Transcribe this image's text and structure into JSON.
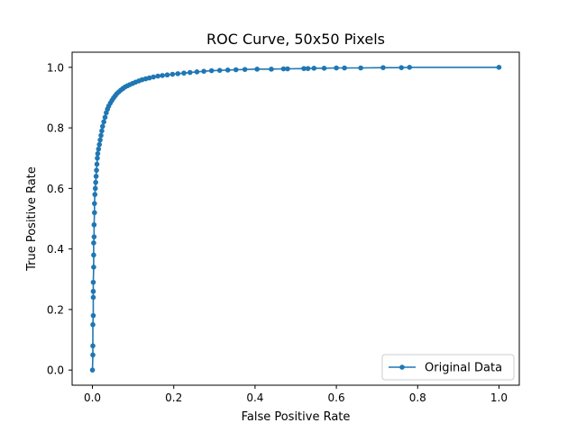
{
  "chart_data": {
    "type": "line",
    "title": "ROC Curve, 50x50 Pixels",
    "xlabel": "False Positive Rate",
    "ylabel": "True Positive Rate",
    "xlim": [
      -0.05,
      1.05
    ],
    "ylim": [
      -0.05,
      1.05
    ],
    "xticks": [
      0.0,
      0.2,
      0.4,
      0.6,
      0.8,
      1.0
    ],
    "yticks": [
      0.0,
      0.2,
      0.4,
      0.6,
      0.8,
      1.0
    ],
    "xtick_labels": [
      "0.0",
      "0.2",
      "0.4",
      "0.6",
      "0.8",
      "1.0"
    ],
    "ytick_labels": [
      "0.0",
      "0.2",
      "0.4",
      "0.6",
      "0.8",
      "1.0"
    ],
    "grid": false,
    "legend_position": "lower right",
    "series": [
      {
        "name": "Original Data",
        "color": "#1f77b4",
        "marker": "circle",
        "x": [
          0.0,
          0.001,
          0.001,
          0.001,
          0.002,
          0.002,
          0.002,
          0.002,
          0.003,
          0.003,
          0.003,
          0.004,
          0.004,
          0.005,
          0.005,
          0.006,
          0.007,
          0.008,
          0.009,
          0.01,
          0.011,
          0.012,
          0.013,
          0.015,
          0.017,
          0.019,
          0.021,
          0.023,
          0.025,
          0.028,
          0.031,
          0.034,
          0.037,
          0.04,
          0.044,
          0.048,
          0.052,
          0.056,
          0.06,
          0.065,
          0.07,
          0.075,
          0.08,
          0.086,
          0.092,
          0.099,
          0.106,
          0.114,
          0.122,
          0.131,
          0.14,
          0.15,
          0.161,
          0.172,
          0.184,
          0.197,
          0.21,
          0.225,
          0.24,
          0.257,
          0.274,
          0.293,
          0.313,
          0.333,
          0.353,
          0.375,
          0.405,
          0.44,
          0.47,
          0.48,
          0.52,
          0.53,
          0.545,
          0.57,
          0.6,
          0.62,
          0.66,
          0.715,
          0.76,
          0.78,
          1.0
        ],
        "y": [
          0.0,
          0.05,
          0.08,
          0.15,
          0.18,
          0.24,
          0.26,
          0.29,
          0.34,
          0.38,
          0.42,
          0.44,
          0.48,
          0.52,
          0.55,
          0.58,
          0.6,
          0.62,
          0.64,
          0.66,
          0.68,
          0.7,
          0.715,
          0.73,
          0.745,
          0.76,
          0.775,
          0.79,
          0.805,
          0.82,
          0.835,
          0.85,
          0.862,
          0.872,
          0.882,
          0.891,
          0.899,
          0.906,
          0.913,
          0.919,
          0.925,
          0.93,
          0.935,
          0.939,
          0.943,
          0.947,
          0.951,
          0.955,
          0.959,
          0.962,
          0.965,
          0.968,
          0.971,
          0.973,
          0.975,
          0.977,
          0.979,
          0.981,
          0.983,
          0.985,
          0.987,
          0.989,
          0.99,
          0.991,
          0.992,
          0.993,
          0.994,
          0.994,
          0.995,
          0.995,
          0.996,
          0.996,
          0.997,
          0.997,
          0.998,
          0.998,
          0.998,
          0.999,
          0.999,
          1.0,
          1.0
        ]
      }
    ]
  }
}
